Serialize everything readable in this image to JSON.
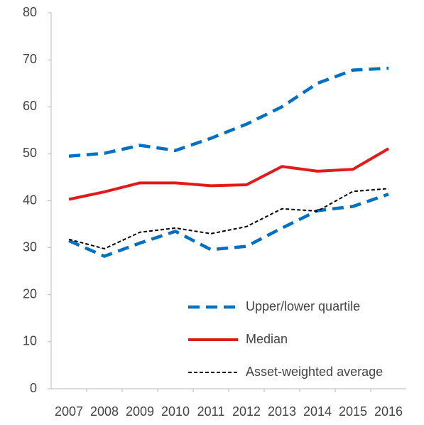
{
  "chart_data": {
    "type": "line",
    "categories": [
      "2007",
      "2008",
      "2009",
      "2010",
      "2011",
      "2012",
      "2013",
      "2014",
      "2015",
      "2016"
    ],
    "series": [
      {
        "name": "Upper/lower quartile",
        "color": "#0070c0",
        "dash": "dashed",
        "values": [
          49.5,
          50.1,
          51.8,
          50.7,
          53.3,
          56.3,
          60.0,
          65.0,
          67.8,
          68.2
        ]
      },
      {
        "color": "#0070c0",
        "dash": "dashed",
        "values": [
          31.5,
          28.2,
          31.0,
          33.5,
          29.6,
          30.3,
          34.2,
          37.9,
          38.8,
          41.4
        ]
      },
      {
        "name": "Median",
        "color": "#e31a1c",
        "dash": "solid",
        "values": [
          40.3,
          41.9,
          43.8,
          43.8,
          43.2,
          43.4,
          47.3,
          46.3,
          46.7,
          51.1
        ]
      },
      {
        "name": "Asset-weighted average",
        "color": "#000000",
        "dash": "dotted",
        "values": [
          31.8,
          29.8,
          33.3,
          34.2,
          33.0,
          34.5,
          38.3,
          37.8,
          42.0,
          42.6
        ]
      }
    ],
    "ylim": [
      0,
      80
    ],
    "yticks": [
      0,
      10,
      20,
      30,
      40,
      50,
      60,
      70,
      80
    ],
    "grid": false
  }
}
